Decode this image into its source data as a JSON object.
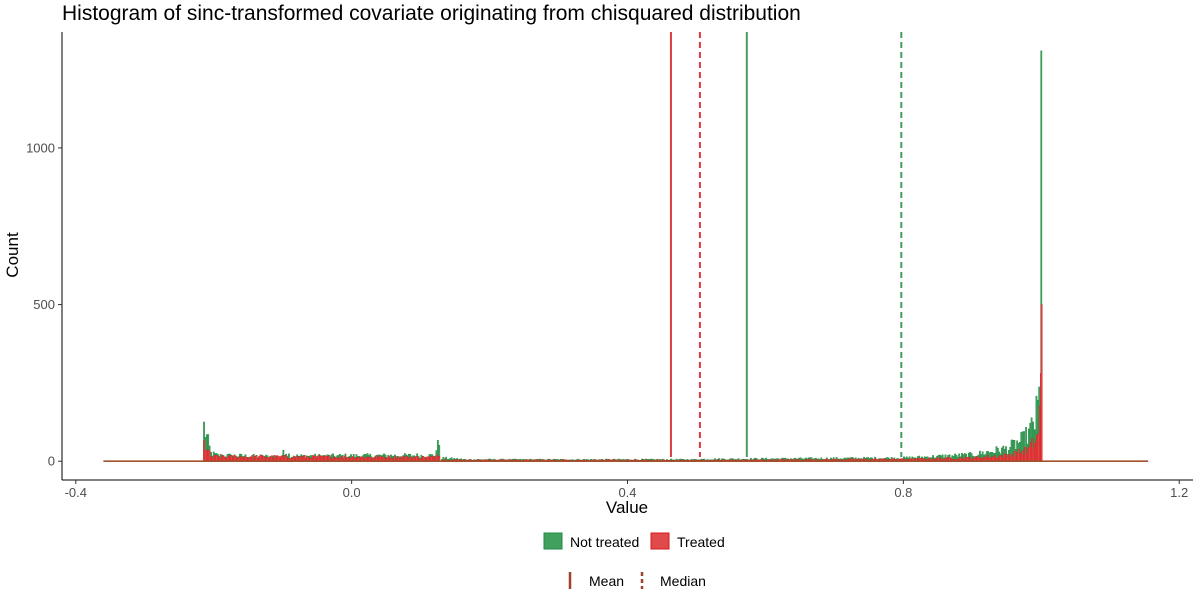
{
  "chart_data": {
    "type": "histogram",
    "title": "Histogram of sinc-transformed covariate originating from chisquared distribution",
    "xlabel": "Value",
    "ylabel": "Count",
    "xlim": [
      -0.42,
      1.22
    ],
    "ylim": [
      -60,
      1370
    ],
    "xticks": [
      -0.4,
      0.0,
      0.4,
      0.8,
      1.2
    ],
    "xtick_labels": [
      "-0.4",
      "0.0",
      "0.4",
      "0.8",
      "1.2"
    ],
    "yticks": [
      0,
      500,
      1000
    ],
    "ytick_labels": [
      "0",
      "500",
      "1000"
    ],
    "grid": false,
    "legend_position": "bottom",
    "groups": [
      {
        "name": "Not treated",
        "color": "#238b45",
        "fill": "#41a05e",
        "mean": 0.573,
        "median": 0.797,
        "segments": [
          {
            "from": -0.215,
            "to": -0.205,
            "start": 110,
            "end": 25
          },
          {
            "from": -0.205,
            "to": -0.195,
            "start": 25,
            "end": 18
          },
          {
            "from": -0.195,
            "to": -0.1,
            "start": 18,
            "end": 14
          },
          {
            "from": -0.1,
            "to": -0.09,
            "start": 38,
            "end": 16
          },
          {
            "from": -0.09,
            "to": 0.12,
            "start": 16,
            "end": 18
          },
          {
            "from": 0.12,
            "to": 0.127,
            "start": 22,
            "end": 68
          },
          {
            "from": 0.13,
            "to": 0.16,
            "start": 10,
            "end": 6
          },
          {
            "from": 0.16,
            "to": 0.5,
            "start": 5,
            "end": 5
          },
          {
            "from": 0.5,
            "to": 0.8,
            "start": 6,
            "end": 10
          },
          {
            "from": 0.8,
            "to": 0.9,
            "start": 10,
            "end": 20
          },
          {
            "from": 0.9,
            "to": 0.95,
            "start": 20,
            "end": 40
          },
          {
            "from": 0.95,
            "to": 0.975,
            "start": 40,
            "end": 70
          },
          {
            "from": 0.975,
            "to": 0.99,
            "start": 70,
            "end": 120
          },
          {
            "from": 0.99,
            "to": 0.996,
            "start": 120,
            "end": 200
          },
          {
            "from": 0.996,
            "to": 0.998,
            "start": 200,
            "end": 280
          }
        ],
        "spikes": [
          [
            0.999,
            1310
          ]
        ]
      },
      {
        "name": "Treated",
        "color": "#d7191c",
        "fill": "#e04a4a",
        "mean": 0.463,
        "median": 0.505,
        "segments": [
          {
            "from": -0.215,
            "to": -0.205,
            "start": 55,
            "end": 15
          },
          {
            "from": -0.205,
            "to": 0.12,
            "start": 14,
            "end": 12
          },
          {
            "from": 0.12,
            "to": 0.127,
            "start": 15,
            "end": 30
          },
          {
            "from": 0.13,
            "to": 0.5,
            "start": 4,
            "end": 3
          },
          {
            "from": 0.5,
            "to": 0.8,
            "start": 3,
            "end": 6
          },
          {
            "from": 0.8,
            "to": 0.9,
            "start": 6,
            "end": 10
          },
          {
            "from": 0.9,
            "to": 0.95,
            "start": 10,
            "end": 18
          },
          {
            "from": 0.95,
            "to": 0.98,
            "start": 18,
            "end": 35
          },
          {
            "from": 0.98,
            "to": 0.993,
            "start": 35,
            "end": 70
          },
          {
            "from": 0.993,
            "to": 0.998,
            "start": 70,
            "end": 160
          }
        ],
        "spikes": [
          [
            0.9985,
            280
          ],
          [
            0.9995,
            500
          ]
        ]
      }
    ],
    "baseline": {
      "from": -0.36,
      "to": 1.155,
      "color": "#a0522d"
    },
    "line_legend": [
      {
        "label": "Mean",
        "style": "solid"
      },
      {
        "label": "Median",
        "style": "dashed"
      }
    ]
  }
}
